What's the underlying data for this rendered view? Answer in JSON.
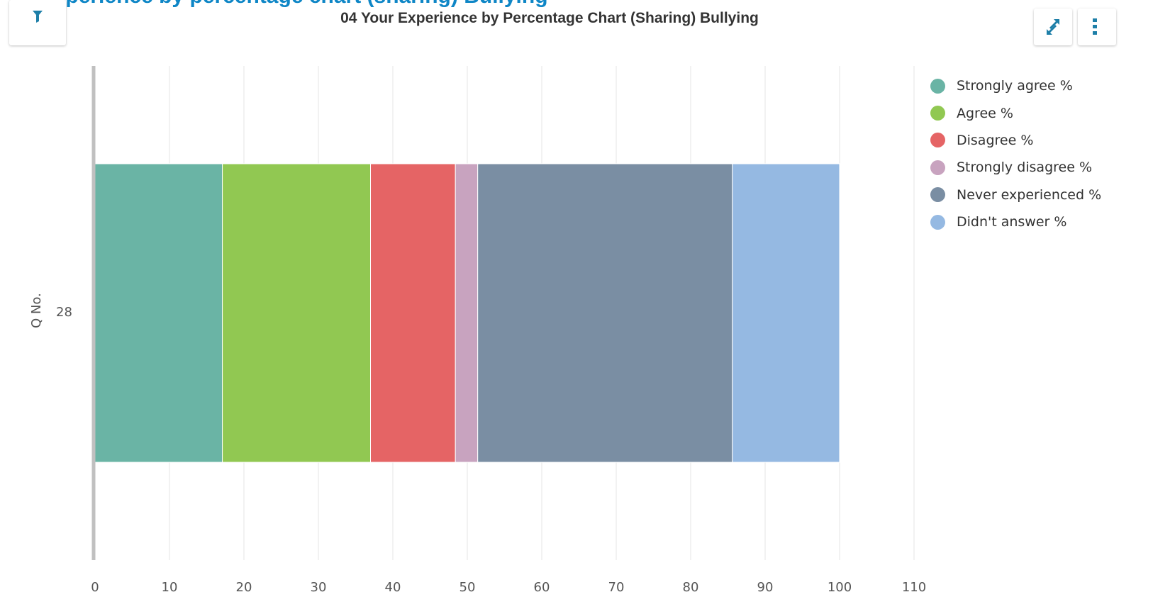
{
  "header": {
    "partial_heading": "Q Experience by percentage chart (sharing) Bullying",
    "filter_icon": "filter-icon",
    "expand_icon": "expand-icon",
    "menu_icon": "vertical-dots-icon"
  },
  "colors": {
    "heading_blue": "#0e86c6",
    "toolbar_icon": "#1e7fa8"
  },
  "chart_data": {
    "type": "bar",
    "orientation": "horizontal",
    "stacked": true,
    "title": "04 Your Experience by Percentage Chart (Sharing) Bullying",
    "xlabel": "",
    "ylabel": "Q No.",
    "categories": [
      "28"
    ],
    "xlim": [
      0,
      110
    ],
    "x_ticks": [
      0,
      10,
      20,
      30,
      40,
      50,
      60,
      70,
      80,
      90,
      100,
      110
    ],
    "grid": true,
    "legend_position": "right",
    "series": [
      {
        "name": "Strongly agree %",
        "values": [
          17.1
        ],
        "color": "#6ab4a5"
      },
      {
        "name": "Agree %",
        "values": [
          19.9
        ],
        "color": "#91c852"
      },
      {
        "name": "Disagree %",
        "values": [
          11.4
        ],
        "color": "#e56465"
      },
      {
        "name": "Strongly disagree %",
        "values": [
          3.0
        ],
        "color": "#c8a3bf"
      },
      {
        "name": "Never experienced %",
        "values": [
          34.2
        ],
        "color": "#7a8ea3"
      },
      {
        "name": "Didn't answer %",
        "values": [
          14.4
        ],
        "color": "#95b9e2"
      }
    ]
  }
}
